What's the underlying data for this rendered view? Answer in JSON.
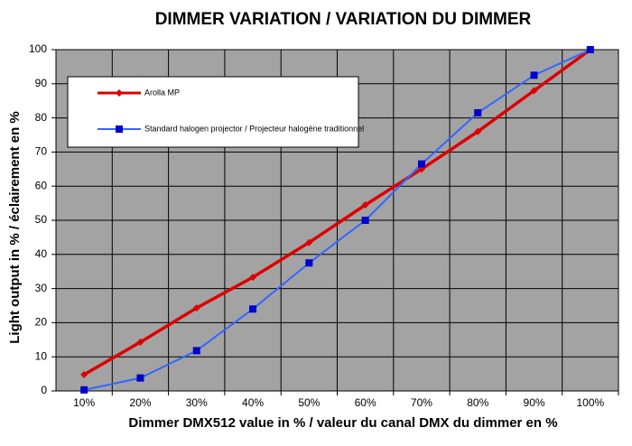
{
  "chart_data": {
    "type": "line",
    "title": "DIMMER VARIATION / VARIATION DU DIMMER",
    "x_label": "Dimmer DMX512 value in % / valeur du canal DMX du dimmer en %",
    "y_label": "Light output in % / éclairement en %",
    "categories": [
      "10%",
      "20%",
      "30%",
      "40%",
      "50%",
      "60%",
      "70%",
      "80%",
      "90%",
      "100%"
    ],
    "series": [
      {
        "name": "Arolla MP",
        "color": "#dd0000",
        "marker": "diamond",
        "values": [
          4.8,
          14.3,
          24.3,
          33.3,
          43.5,
          54.5,
          65,
          76,
          88,
          100
        ]
      },
      {
        "name": "Standard halogen projector / Projecteur halogène traditionnel",
        "color": "#3366ff",
        "marker": "square",
        "values": [
          0.3,
          3.8,
          11.8,
          24,
          37.5,
          50,
          66.5,
          81.5,
          92.5,
          100
        ]
      }
    ],
    "ylim": [
      0,
      100
    ],
    "yticks": [
      0,
      10,
      20,
      30,
      40,
      50,
      60,
      70,
      80,
      90,
      100
    ],
    "grid": true
  }
}
